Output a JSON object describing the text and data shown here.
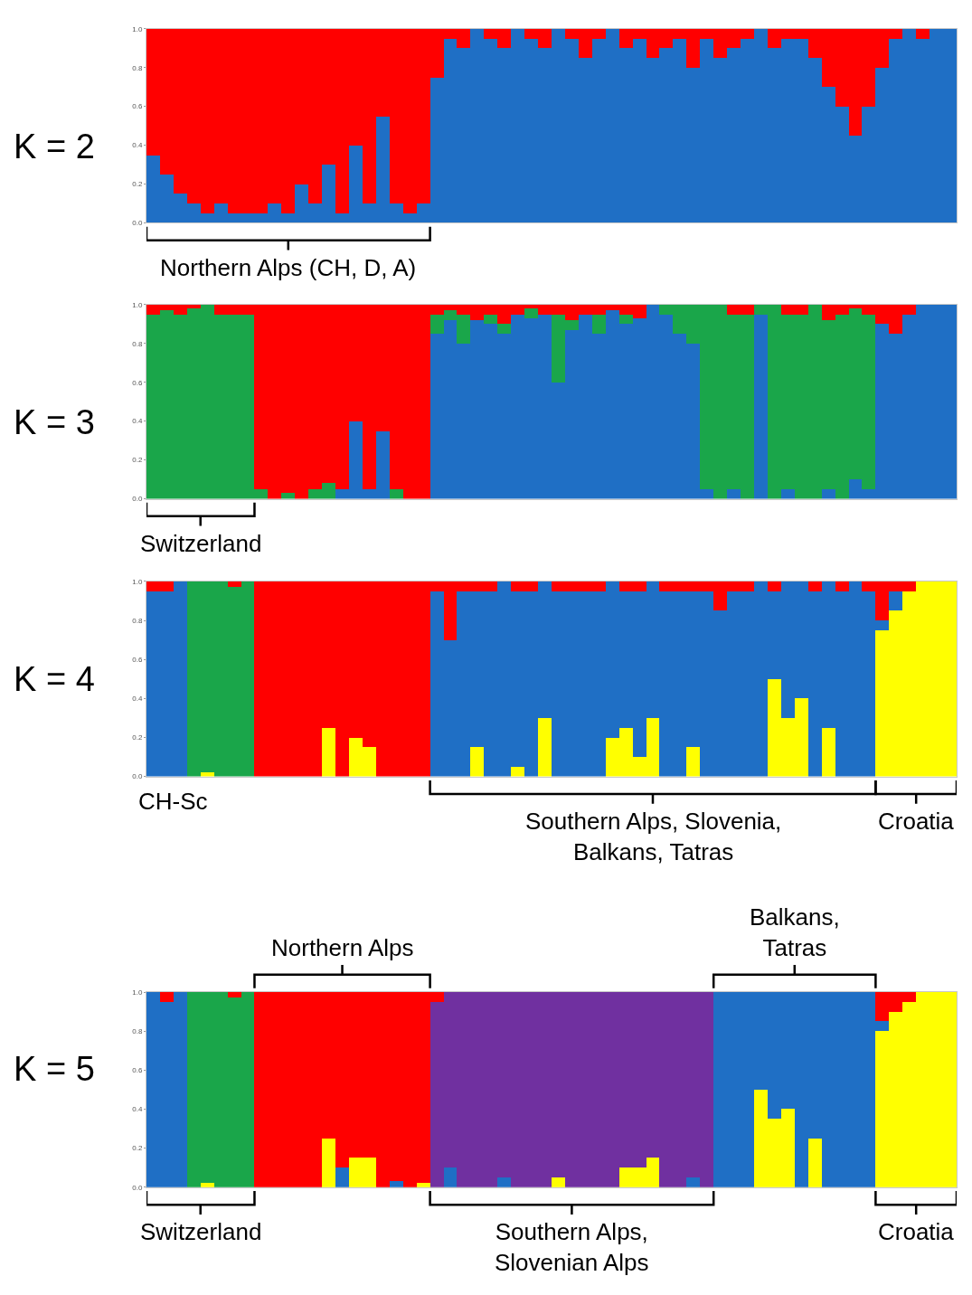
{
  "chart_data": [
    {
      "type": "bar",
      "stacked": true,
      "title": "K = 2",
      "ylim": [
        0,
        1
      ],
      "yticks": [
        {
          "value": 0,
          "label": "0.0"
        },
        {
          "value": 0.2,
          "label": "0.2"
        },
        {
          "value": 0.4,
          "label": "0.4"
        },
        {
          "value": 0.6,
          "label": "0.6"
        },
        {
          "value": 0.8,
          "label": "0.8"
        },
        {
          "value": 1,
          "label": "1.0"
        }
      ],
      "categories": [
        null,
        null,
        null,
        null,
        null,
        null,
        null,
        null,
        null,
        null,
        null,
        null,
        null,
        null,
        null,
        null,
        null,
        null,
        null,
        null,
        null,
        null,
        null,
        null,
        null,
        null,
        null,
        null,
        null,
        null,
        null,
        null,
        null,
        null,
        null,
        null,
        null,
        null,
        null,
        null,
        null,
        null,
        null,
        null,
        null,
        null,
        null,
        null,
        null,
        null,
        null,
        null,
        null,
        null,
        null,
        null,
        null,
        null,
        null,
        null
      ],
      "series": [
        {
          "color": "#1f6fc5",
          "values": [
            0.35,
            0.25,
            0.15,
            0.1,
            0.05,
            0.1,
            0.05,
            0.05,
            0.05,
            0.1,
            0.05,
            0.2,
            0.1,
            0.3,
            0.05,
            0.4,
            0.1,
            0.55,
            0.1,
            0.05,
            0.1,
            0.75,
            0.95,
            0.9,
            1,
            0.95,
            0.9,
            1,
            0.95,
            0.9,
            1,
            0.95,
            0.85,
            0.95,
            1,
            0.9,
            0.95,
            0.85,
            0.9,
            0.95,
            0.8,
            0.95,
            0.85,
            0.9,
            0.95,
            1,
            0.9,
            0.95,
            0.95,
            0.85,
            0.7,
            0.6,
            0.45,
            0.6,
            0.8,
            0.95,
            1,
            0.95,
            1,
            1
          ]
        },
        {
          "color": "#ff0000",
          "values": [
            0.65,
            0.75,
            0.85,
            0.9,
            0.95,
            0.9,
            0.95,
            0.95,
            0.95,
            0.9,
            0.95,
            0.8,
            0.9,
            0.7,
            0.95,
            0.6,
            0.9,
            0.45,
            0.9,
            0.95,
            0.9,
            0.25,
            0.05,
            0.1,
            0,
            0.05,
            0.1,
            0,
            0.05,
            0.1,
            0,
            0.05,
            0.15,
            0.05,
            0,
            0.1,
            0.05,
            0.15,
            0.1,
            0.05,
            0.2,
            0.05,
            0.15,
            0.1,
            0.05,
            0,
            0.1,
            0.05,
            0.05,
            0.15,
            0.3,
            0.4,
            0.55,
            0.4,
            0.2,
            0.05,
            0,
            0.05,
            0,
            0
          ]
        }
      ],
      "annotations": [
        "Northern Alps (CH, D, A)"
      ]
    },
    {
      "type": "bar",
      "stacked": true,
      "title": "K = 3",
      "ylim": [
        0,
        1
      ],
      "yticks": [
        {
          "value": 0,
          "label": "0.0"
        },
        {
          "value": 0.2,
          "label": "0.2"
        },
        {
          "value": 0.4,
          "label": "0.4"
        },
        {
          "value": 0.6,
          "label": "0.6"
        },
        {
          "value": 0.8,
          "label": "0.8"
        },
        {
          "value": 1,
          "label": "1.0"
        }
      ],
      "categories": [
        null,
        null,
        null,
        null,
        null,
        null,
        null,
        null,
        null,
        null,
        null,
        null,
        null,
        null,
        null,
        null,
        null,
        null,
        null,
        null,
        null,
        null,
        null,
        null,
        null,
        null,
        null,
        null,
        null,
        null,
        null,
        null,
        null,
        null,
        null,
        null,
        null,
        null,
        null,
        null,
        null,
        null,
        null,
        null,
        null,
        null,
        null,
        null,
        null,
        null,
        null,
        null,
        null,
        null,
        null,
        null,
        null,
        null,
        null,
        null
      ],
      "series": [
        {
          "color": "#1f6fc5",
          "values": [
            0,
            0,
            0,
            0,
            0,
            0,
            0,
            0,
            0,
            0,
            0,
            0,
            0,
            0,
            0.05,
            0.4,
            0.05,
            0.35,
            0,
            0,
            0,
            0.85,
            0.92,
            0.8,
            0.92,
            0.9,
            0.85,
            0.95,
            0.93,
            0.95,
            0.6,
            0.87,
            0.95,
            0.85,
            0.97,
            0.9,
            0.93,
            1,
            0.95,
            0.85,
            0.8,
            0.05,
            0,
            0.05,
            0,
            0.95,
            0,
            0.05,
            0,
            0,
            0.05,
            0,
            0.1,
            0.05,
            0.9,
            0.85,
            0.95,
            1,
            1,
            1
          ]
        },
        {
          "color": "#1aa64a",
          "values": [
            0.95,
            0.97,
            0.95,
            0.98,
            1,
            0.95,
            0.95,
            0.95,
            0.05,
            0,
            0.03,
            0,
            0.05,
            0.08,
            0,
            0,
            0,
            0,
            0.05,
            0,
            0,
            0.1,
            0.05,
            0.15,
            0,
            0.05,
            0.05,
            0,
            0.05,
            0,
            0.35,
            0.05,
            0,
            0.1,
            0,
            0.05,
            0,
            0,
            0.05,
            0.15,
            0.2,
            0.95,
            1,
            0.9,
            0.95,
            0.05,
            1,
            0.9,
            0.95,
            1,
            0.87,
            0.95,
            0.88,
            0.9,
            0,
            0,
            0,
            0,
            0,
            0
          ]
        },
        {
          "color": "#ff0000",
          "values": [
            0.05,
            0.03,
            0.05,
            0.02,
            0,
            0.05,
            0.05,
            0.05,
            0.95,
            1,
            0.97,
            1,
            0.95,
            0.92,
            0.95,
            0.6,
            0.95,
            0.65,
            0.95,
            1,
            1,
            0.05,
            0.03,
            0.05,
            0.08,
            0.05,
            0.1,
            0.05,
            0.02,
            0.05,
            0.05,
            0.08,
            0.05,
            0.05,
            0.03,
            0.05,
            0.07,
            0,
            0,
            0,
            0,
            0,
            0,
            0.05,
            0.05,
            0,
            0,
            0.05,
            0.05,
            0,
            0.08,
            0.05,
            0.02,
            0.05,
            0.1,
            0.15,
            0.05,
            0,
            0,
            0
          ]
        }
      ],
      "annotations": [
        "Switzerland"
      ]
    },
    {
      "type": "bar",
      "stacked": true,
      "title": "K = 4",
      "ylim": [
        0,
        1
      ],
      "yticks": [
        {
          "value": 0,
          "label": "0.0"
        },
        {
          "value": 0.2,
          "label": "0.2"
        },
        {
          "value": 0.4,
          "label": "0.4"
        },
        {
          "value": 0.6,
          "label": "0.6"
        },
        {
          "value": 0.8,
          "label": "0.8"
        },
        {
          "value": 1,
          "label": "1.0"
        }
      ],
      "categories": [
        null,
        null,
        null,
        null,
        null,
        null,
        null,
        null,
        null,
        null,
        null,
        null,
        null,
        null,
        null,
        null,
        null,
        null,
        null,
        null,
        null,
        null,
        null,
        null,
        null,
        null,
        null,
        null,
        null,
        null,
        null,
        null,
        null,
        null,
        null,
        null,
        null,
        null,
        null,
        null,
        null,
        null,
        null,
        null,
        null,
        null,
        null,
        null,
        null,
        null,
        null,
        null,
        null,
        null,
        null,
        null,
        null,
        null,
        null,
        null
      ],
      "series": [
        {
          "color": "#ffff00",
          "values": [
            0,
            0,
            0,
            0,
            0.02,
            0,
            0,
            0,
            0,
            0,
            0,
            0,
            0,
            0.25,
            0,
            0.2,
            0.15,
            0,
            0,
            0,
            0,
            0,
            0,
            0,
            0.15,
            0,
            0,
            0.05,
            0,
            0.3,
            0,
            0,
            0,
            0,
            0.2,
            0.25,
            0.1,
            0.3,
            0,
            0,
            0.15,
            0,
            0,
            0,
            0,
            0,
            0.5,
            0.3,
            0.4,
            0,
            0.25,
            0,
            0,
            0,
            0.75,
            0.85,
            0.95,
            1,
            1,
            1
          ]
        },
        {
          "color": "#1aa64a",
          "values": [
            0,
            0,
            0,
            1,
            0.98,
            1,
            0.97,
            1,
            0,
            0,
            0,
            0,
            0,
            0,
            0,
            0,
            0,
            0,
            0,
            0,
            0,
            0,
            0,
            0,
            0,
            0,
            0,
            0,
            0,
            0,
            0,
            0,
            0,
            0,
            0,
            0,
            0,
            0,
            0,
            0,
            0,
            0,
            0,
            0,
            0,
            0,
            0,
            0,
            0,
            0,
            0,
            0,
            0,
            0,
            0,
            0,
            0,
            0,
            0,
            0
          ]
        },
        {
          "color": "#1f6fc5",
          "values": [
            0.95,
            0.95,
            1,
            0,
            0,
            0,
            0,
            0,
            0,
            0,
            0,
            0,
            0,
            0,
            0,
            0,
            0,
            0,
            0,
            0,
            0,
            0.95,
            0.7,
            0.95,
            0.8,
            0.95,
            1,
            0.9,
            0.95,
            0.7,
            0.95,
            0.95,
            0.95,
            0.95,
            0.8,
            0.7,
            0.85,
            0.7,
            0.95,
            0.95,
            0.8,
            0.95,
            0.85,
            0.95,
            0.95,
            1,
            0.45,
            0.7,
            0.6,
            0.95,
            0.75,
            0.95,
            1,
            0.95,
            0.05,
            0.1,
            0,
            0,
            0,
            0
          ]
        },
        {
          "color": "#ff0000",
          "values": [
            0.05,
            0.05,
            0,
            0,
            0,
            0,
            0.03,
            0,
            1,
            1,
            1,
            1,
            1,
            0.75,
            1,
            0.8,
            0.85,
            1,
            1,
            1,
            1,
            0.05,
            0.3,
            0.05,
            0.05,
            0.05,
            0,
            0.05,
            0.05,
            0,
            0.05,
            0.05,
            0.05,
            0.05,
            0,
            0.05,
            0.05,
            0,
            0.05,
            0.05,
            0.05,
            0.05,
            0.15,
            0.05,
            0.05,
            0,
            0.05,
            0,
            0,
            0.05,
            0,
            0.05,
            0,
            0.05,
            0.2,
            0.05,
            0.05,
            0,
            0,
            0
          ]
        }
      ],
      "annotations": [
        "CH-Sc",
        "Southern Alps, Slovenia,\nBalkans, Tatras",
        "Croatia"
      ]
    },
    {
      "type": "bar",
      "stacked": true,
      "title": "K = 5",
      "ylim": [
        0,
        1
      ],
      "yticks": [
        {
          "value": 0,
          "label": "0.0"
        },
        {
          "value": 0.2,
          "label": "0.2"
        },
        {
          "value": 0.4,
          "label": "0.4"
        },
        {
          "value": 0.6,
          "label": "0.6"
        },
        {
          "value": 0.8,
          "label": "0.8"
        },
        {
          "value": 1,
          "label": "1.0"
        }
      ],
      "categories": [
        null,
        null,
        null,
        null,
        null,
        null,
        null,
        null,
        null,
        null,
        null,
        null,
        null,
        null,
        null,
        null,
        null,
        null,
        null,
        null,
        null,
        null,
        null,
        null,
        null,
        null,
        null,
        null,
        null,
        null,
        null,
        null,
        null,
        null,
        null,
        null,
        null,
        null,
        null,
        null,
        null,
        null,
        null,
        null,
        null,
        null,
        null,
        null,
        null,
        null,
        null,
        null,
        null,
        null,
        null,
        null,
        null,
        null,
        null,
        null
      ],
      "series": [
        {
          "color": "#ffff00",
          "values": [
            0,
            0,
            0,
            0,
            0.02,
            0,
            0,
            0,
            0,
            0,
            0,
            0,
            0,
            0.25,
            0,
            0.15,
            0.15,
            0,
            0,
            0,
            0.02,
            0,
            0,
            0,
            0,
            0,
            0,
            0,
            0,
            0,
            0.05,
            0,
            0,
            0,
            0,
            0.1,
            0.1,
            0.15,
            0,
            0,
            0,
            0,
            0,
            0,
            0,
            0.5,
            0.35,
            0.4,
            0,
            0.25,
            0,
            0,
            0,
            0,
            0.8,
            0.9,
            0.95,
            1,
            1,
            1
          ]
        },
        {
          "color": "#1aa64a",
          "values": [
            0,
            0,
            0,
            1,
            0.98,
            1,
            0.97,
            1,
            0,
            0,
            0,
            0,
            0,
            0,
            0,
            0,
            0,
            0,
            0,
            0,
            0,
            0,
            0,
            0,
            0,
            0,
            0,
            0,
            0,
            0,
            0,
            0,
            0,
            0,
            0,
            0,
            0,
            0,
            0,
            0,
            0,
            0,
            0,
            0,
            0,
            0,
            0,
            0,
            0,
            0,
            0,
            0,
            0,
            0,
            0,
            0,
            0,
            0,
            0,
            0
          ]
        },
        {
          "color": "#1f6fc5",
          "values": [
            1,
            0.95,
            1,
            0,
            0,
            0,
            0,
            0,
            0,
            0,
            0,
            0,
            0,
            0,
            0.1,
            0,
            0,
            0,
            0.03,
            0,
            0,
            0,
            0.1,
            0,
            0,
            0,
            0.05,
            0,
            0,
            0,
            0,
            0,
            0,
            0,
            0,
            0,
            0,
            0,
            0,
            0,
            0.05,
            0,
            1,
            1,
            1,
            0.5,
            0.65,
            0.6,
            1,
            0.75,
            1,
            1,
            1,
            1,
            0.05,
            0,
            0,
            0,
            0,
            0
          ]
        },
        {
          "color": "#7030a0",
          "values": [
            0,
            0,
            0,
            0,
            0,
            0,
            0,
            0,
            0,
            0,
            0,
            0,
            0,
            0,
            0,
            0,
            0,
            0,
            0,
            0,
            0,
            0.95,
            0.9,
            1,
            1,
            1,
            0.95,
            1,
            1,
            1,
            0.95,
            1,
            1,
            1,
            1,
            0.9,
            0.9,
            0.85,
            1,
            1,
            0.95,
            1,
            0,
            0,
            0,
            0,
            0,
            0,
            0,
            0,
            0,
            0,
            0,
            0,
            0,
            0,
            0,
            0,
            0,
            0
          ]
        },
        {
          "color": "#ff0000",
          "values": [
            0,
            0.05,
            0,
            0,
            0,
            0,
            0.03,
            0,
            1,
            1,
            1,
            1,
            1,
            0.75,
            0.9,
            0.85,
            0.85,
            1,
            0.97,
            1,
            0.98,
            0.05,
            0,
            0,
            0,
            0,
            0,
            0,
            0,
            0,
            0,
            0,
            0,
            0,
            0,
            0,
            0,
            0,
            0,
            0,
            0,
            0,
            0,
            0,
            0,
            0,
            0,
            0,
            0,
            0,
            0,
            0,
            0,
            0,
            0.15,
            0.1,
            0.05,
            0,
            0,
            0
          ]
        }
      ],
      "annotations": [
        "Northern Alps",
        "Balkans,\nTatras",
        "Switzerland",
        "Southern Alps,\nSlovenian Alps",
        "Croatia"
      ]
    }
  ]
}
